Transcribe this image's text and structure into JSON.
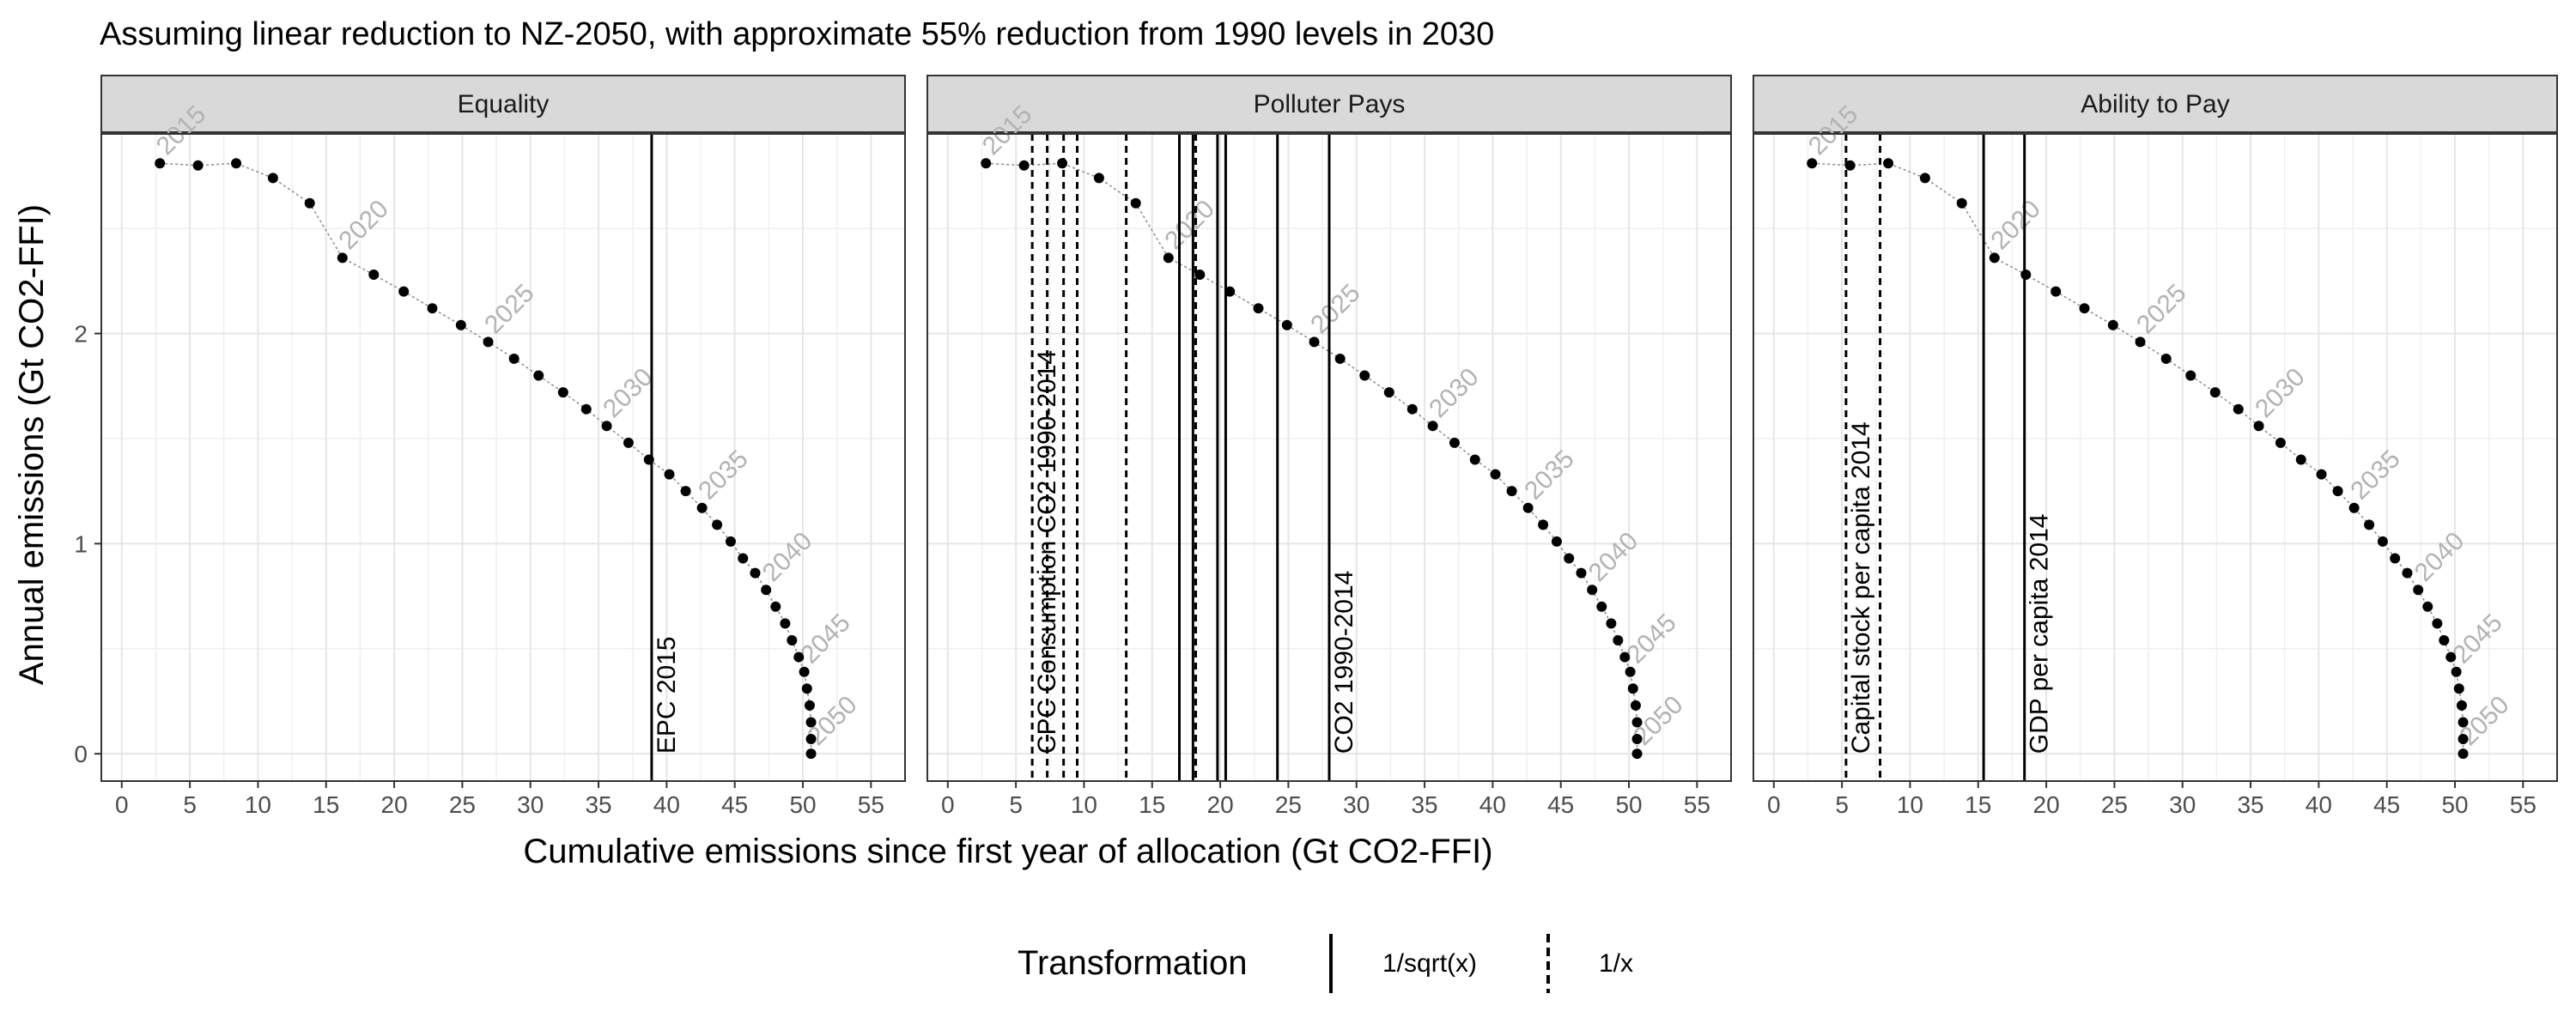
{
  "chart_data": {
    "type": "line",
    "title": "Assuming linear reduction to NZ-2050, with approximate 55% reduction from 1990 levels in 2030",
    "xlabel": "Cumulative emissions since first year of allocation (Gt CO2-FFI)",
    "ylabel": "Annual emissions (Gt CO2-FFI)",
    "xlim": [
      -1.5,
      57.5
    ],
    "ylim": [
      -0.13,
      2.95
    ],
    "x_ticks": [
      "0",
      "5",
      "10",
      "15",
      "20",
      "25",
      "30",
      "35",
      "40",
      "45",
      "50",
      "55"
    ],
    "y_ticks": [
      "0",
      "1",
      "2"
    ],
    "grid": true,
    "legend_position": "bottom",
    "facets": [
      "Equality",
      "Polluter Pays",
      "Ability to Pay"
    ],
    "series": {
      "years": [
        2015,
        2016,
        2017,
        2018,
        2019,
        2020,
        2021,
        2022,
        2023,
        2024,
        2025,
        2026,
        2027,
        2028,
        2029,
        2030,
        2031,
        2032,
        2033,
        2034,
        2035,
        2036,
        2037,
        2038,
        2039,
        2040,
        2041,
        2042,
        2043,
        2044,
        2045,
        2046,
        2047,
        2048,
        2049,
        2050
      ],
      "x": [
        2.8,
        5.6,
        8.4,
        11.1,
        13.8,
        16.2,
        18.5,
        20.7,
        22.8,
        24.9,
        26.9,
        28.8,
        30.6,
        32.4,
        34.1,
        35.6,
        37.2,
        38.7,
        40.2,
        41.4,
        42.6,
        43.7,
        44.7,
        45.6,
        46.5,
        47.3,
        48.0,
        48.7,
        49.2,
        49.7,
        50.1,
        50.3,
        50.5,
        50.6,
        50.6,
        50.6
      ],
      "y": [
        2.81,
        2.8,
        2.81,
        2.74,
        2.62,
        2.36,
        2.28,
        2.2,
        2.12,
        2.04,
        1.96,
        1.88,
        1.8,
        1.72,
        1.64,
        1.56,
        1.48,
        1.4,
        1.33,
        1.25,
        1.17,
        1.09,
        1.01,
        0.93,
        0.86,
        0.78,
        0.7,
        0.62,
        0.54,
        0.46,
        0.39,
        0.31,
        0.23,
        0.15,
        0.07,
        0.0
      ]
    },
    "year_labels": [
      {
        "year": 2015,
        "text": "2015"
      },
      {
        "year": 2020,
        "text": "2020"
      },
      {
        "year": 2025,
        "text": "2025"
      },
      {
        "year": 2030,
        "text": "2030"
      },
      {
        "year": 2035,
        "text": "2035"
      },
      {
        "year": 2040,
        "text": "2040"
      },
      {
        "year": 2045,
        "text": "2045"
      },
      {
        "year": 2050,
        "text": "2050"
      }
    ],
    "vlines": [
      [
        {
          "x": 38.9,
          "transformation": "1/sqrt(x)",
          "label": "EPC 2015"
        }
      ],
      [
        {
          "x": 6.2,
          "transformation": "1/x",
          "label": ""
        },
        {
          "x": 7.3,
          "transformation": "1/x",
          "label": ""
        },
        {
          "x": 8.5,
          "transformation": "1/x",
          "label": ""
        },
        {
          "x": 9.5,
          "transformation": "1/x",
          "label": ""
        },
        {
          "x": 13.1,
          "transformation": "1/x",
          "label": ""
        },
        {
          "x": 18.2,
          "transformation": "1/x",
          "label": ""
        },
        {
          "x": 17.0,
          "transformation": "1/sqrt(x)",
          "label": ""
        },
        {
          "x": 18.0,
          "transformation": "1/sqrt(x)",
          "label": ""
        },
        {
          "x": 19.8,
          "transformation": "1/sqrt(x)",
          "label": ""
        },
        {
          "x": 20.4,
          "transformation": "1/sqrt(x)",
          "label": ""
        },
        {
          "x": 24.2,
          "transformation": "1/sqrt(x)",
          "label": ""
        },
        {
          "x": 28.0,
          "transformation": "1/sqrt(x)",
          "label": "CO2 1990-2014"
        }
      ],
      [
        {
          "x": 5.3,
          "transformation": "1/x",
          "label": "Capital stock per capita 2014"
        },
        {
          "x": 7.8,
          "transformation": "1/x",
          "label": ""
        },
        {
          "x": 15.4,
          "transformation": "1/sqrt(x)",
          "label": ""
        },
        {
          "x": 18.4,
          "transformation": "1/sqrt(x)",
          "label": "GDP per capita 2014"
        }
      ]
    ],
    "overlap_labels": {
      "CPC": "CPC Consumption CO2 1990-2014"
    },
    "legend": {
      "title": "Transformation",
      "entries": [
        "1/sqrt(x)",
        "1/x"
      ]
    }
  }
}
